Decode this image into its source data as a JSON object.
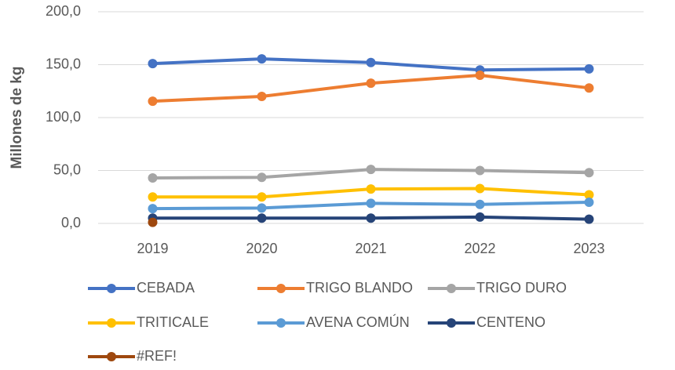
{
  "chart_data": {
    "type": "line",
    "y_label": "Millones de kg",
    "categories": [
      "2019",
      "2020",
      "2021",
      "2022",
      "2023"
    ],
    "series": [
      {
        "name": "CEBADA",
        "color": "#4472c4",
        "values": [
          151,
          155.5,
          152,
          145,
          146
        ]
      },
      {
        "name": "TRIGO BLANDO",
        "color": "#ed7d31",
        "values": [
          115.5,
          120,
          132.5,
          140,
          128
        ]
      },
      {
        "name": "TRIGO DURO",
        "color": "#a5a5a5",
        "values": [
          43,
          43.5,
          51,
          50,
          48
        ]
      },
      {
        "name": "TRITICALE",
        "color": "#ffc000",
        "values": [
          25,
          25,
          32.5,
          33,
          27
        ]
      },
      {
        "name": "AVENA COMÚN",
        "color": "#5b9bd5",
        "values": [
          14,
          14.5,
          19,
          18,
          20
        ]
      },
      {
        "name": "CENTENO",
        "color": "#264478",
        "values": [
          5,
          5,
          5,
          6,
          4
        ]
      },
      {
        "name": "#REF!",
        "color": "#9e480e",
        "values": [
          1,
          null,
          null,
          null,
          null
        ]
      }
    ],
    "ylim": [
      0,
      200
    ],
    "yticks": [
      {
        "value": 0,
        "label": "0,0"
      },
      {
        "value": 50,
        "label": "50,0"
      },
      {
        "value": 100,
        "label": "100,0"
      },
      {
        "value": 150,
        "label": "150,0"
      },
      {
        "value": 200,
        "label": "200,0"
      }
    ],
    "grid": true,
    "legend": "bottom"
  }
}
